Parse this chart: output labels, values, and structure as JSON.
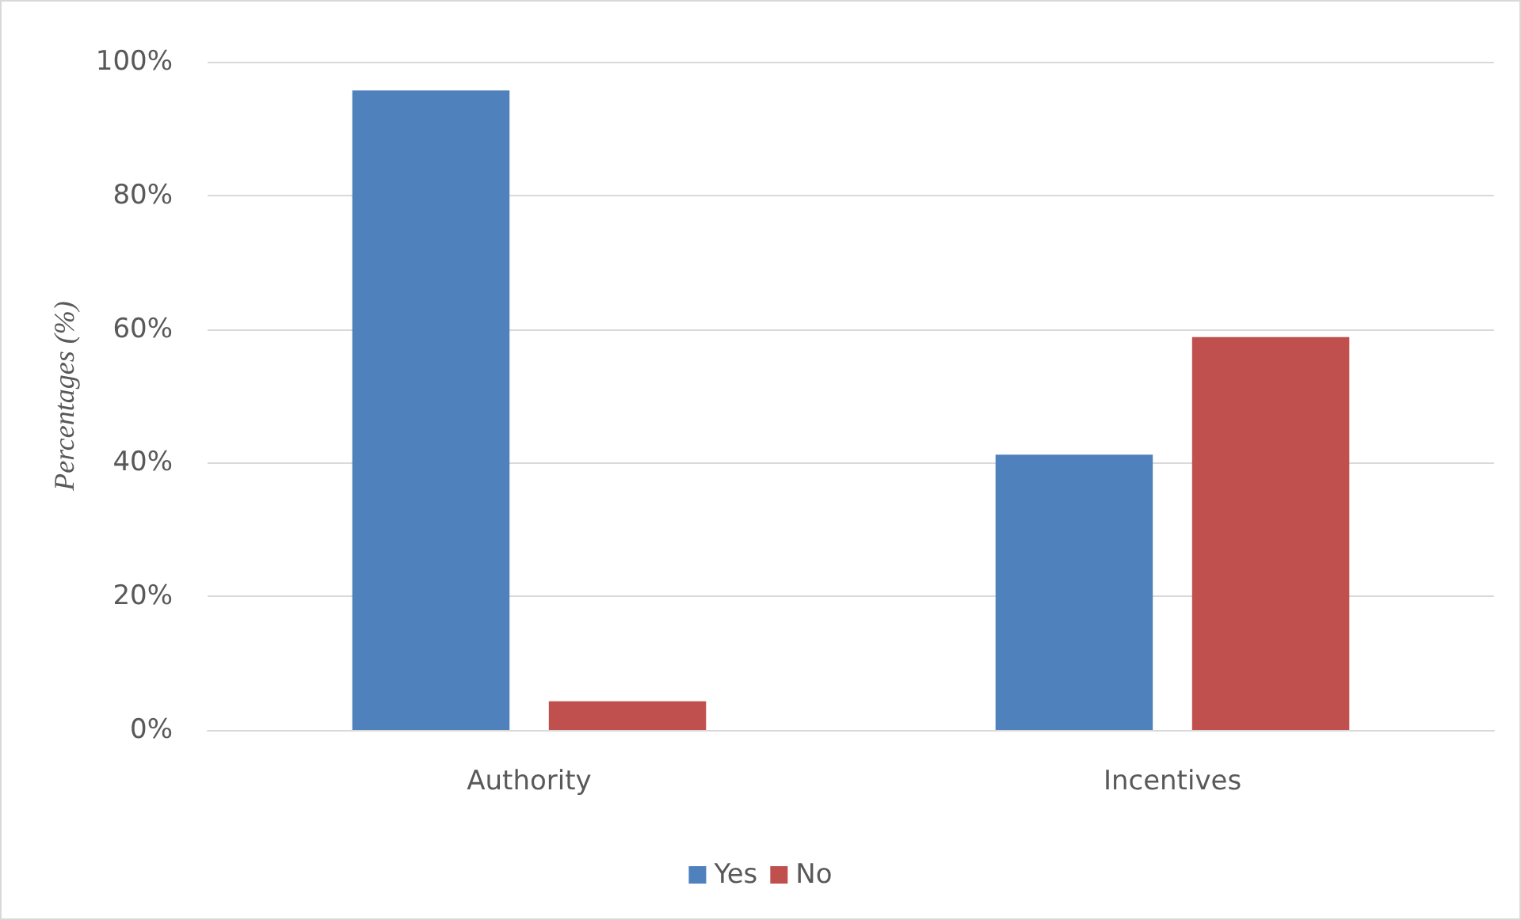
{
  "chart_data": {
    "type": "bar",
    "ylabel": "Percentages (%)",
    "categories": [
      "Authority",
      "Incentives"
    ],
    "series": [
      {
        "name": "Yes",
        "color": "#4f81bd",
        "values": [
          95.7,
          41.2
        ]
      },
      {
        "name": "No",
        "color": "#c0504d",
        "values": [
          4.3,
          58.8
        ]
      }
    ],
    "ylim": [
      0,
      100
    ],
    "yticks": [
      {
        "value": 0,
        "label": "0%"
      },
      {
        "value": 20,
        "label": "20%"
      },
      {
        "value": 40,
        "label": "40%"
      },
      {
        "value": 60,
        "label": "60%"
      },
      {
        "value": 80,
        "label": "80%"
      },
      {
        "value": 100,
        "label": "100%"
      }
    ],
    "grid": "y",
    "legend": "bottom"
  }
}
